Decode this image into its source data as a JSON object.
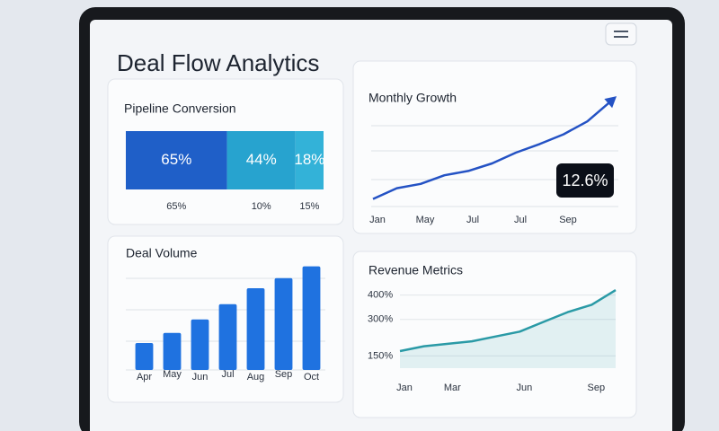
{
  "header": {
    "title": "Deal Flow Analytics"
  },
  "chart_data": [
    {
      "type": "stacked-bar",
      "title": "Pipeline Conversion",
      "colors": [
        "#1f5fc8",
        "#27a3cf",
        "#33b2d8"
      ],
      "series": [
        {
          "values": [
            65,
            44,
            18
          ],
          "value_labels": [
            "65%",
            "44%",
            "18%"
          ]
        },
        {
          "values": [
            65,
            10,
            15
          ],
          "value_labels": [
            "65%",
            "10%",
            "15%"
          ]
        }
      ]
    },
    {
      "type": "line",
      "title": "Monthly Growth",
      "color": "#2452c4",
      "arrow": true,
      "categories": [
        "Jan",
        null,
        "May",
        null,
        "Jul",
        null,
        "Jul",
        null,
        "Sep",
        null,
        null
      ],
      "values": [
        7,
        17,
        21,
        29,
        33,
        40,
        50,
        58,
        67,
        79,
        98
      ],
      "ylim": [
        0,
        100
      ],
      "annotation": "12.6%"
    },
    {
      "type": "bar",
      "title": "Deal Volume",
      "color": "#1f72e0",
      "categories": [
        "Apr",
        "May",
        "Jun",
        "Jul",
        "Aug",
        "Sep",
        "Oct"
      ],
      "values": [
        32,
        44,
        60,
        78,
        97,
        109,
        123
      ],
      "ylim": [
        0,
        130
      ]
    },
    {
      "type": "line",
      "title": "Revenue Metrics",
      "color": "#2a9aa6",
      "area": true,
      "categories": [
        "Jan",
        null,
        "Mar",
        null,
        null,
        "Jun",
        null,
        null,
        "Sep",
        null
      ],
      "values": [
        170,
        190,
        200,
        210,
        230,
        250,
        290,
        330,
        360,
        420
      ],
      "ylim": [
        100,
        450
      ],
      "yticks": [
        {
          "value": 150,
          "label": "150%"
        },
        {
          "value": 300,
          "label": "300%"
        },
        {
          "value": 400,
          "label": "400%"
        }
      ]
    }
  ]
}
